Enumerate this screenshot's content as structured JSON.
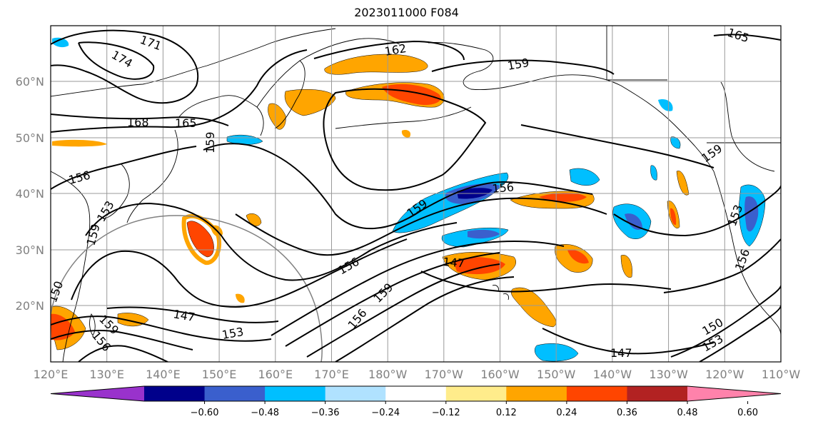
{
  "title": "2023011000 F084",
  "map": {
    "lat_labels": [
      "20°N",
      "30°N",
      "40°N",
      "50°N",
      "60°N"
    ],
    "lon_labels": [
      "120°E",
      "130°E",
      "140°E",
      "150°E",
      "160°E",
      "170°E",
      "180°W",
      "170°W",
      "160°W",
      "150°W",
      "140°W",
      "130°W",
      "120°W",
      "110°W"
    ],
    "contour_labels": [
      "171",
      "174",
      "168",
      "165",
      "159",
      "162",
      "159",
      "165",
      "156",
      "159",
      "156",
      "153",
      "159",
      "156",
      "147",
      "159",
      "156",
      "147",
      "153",
      "150",
      "159",
      "156",
      "150",
      "153",
      "147",
      "153",
      "156",
      "159"
    ],
    "grid_color": "#999999",
    "contour_color": "#000000"
  },
  "colorbar": {
    "colors": [
      "#9932cc",
      "#00008b",
      "#3a5fcd",
      "#00bfff",
      "#b0e2ff",
      "#ffffff",
      "#ffec8b",
      "#ffa500",
      "#ff4500",
      "#b22222",
      "#ff82ab"
    ],
    "tick_labels": [
      "−0.60",
      "−0.48",
      "−0.36",
      "−0.24",
      "−0.12",
      "0.12",
      "0.24",
      "0.36",
      "0.48",
      "0.60"
    ]
  }
}
